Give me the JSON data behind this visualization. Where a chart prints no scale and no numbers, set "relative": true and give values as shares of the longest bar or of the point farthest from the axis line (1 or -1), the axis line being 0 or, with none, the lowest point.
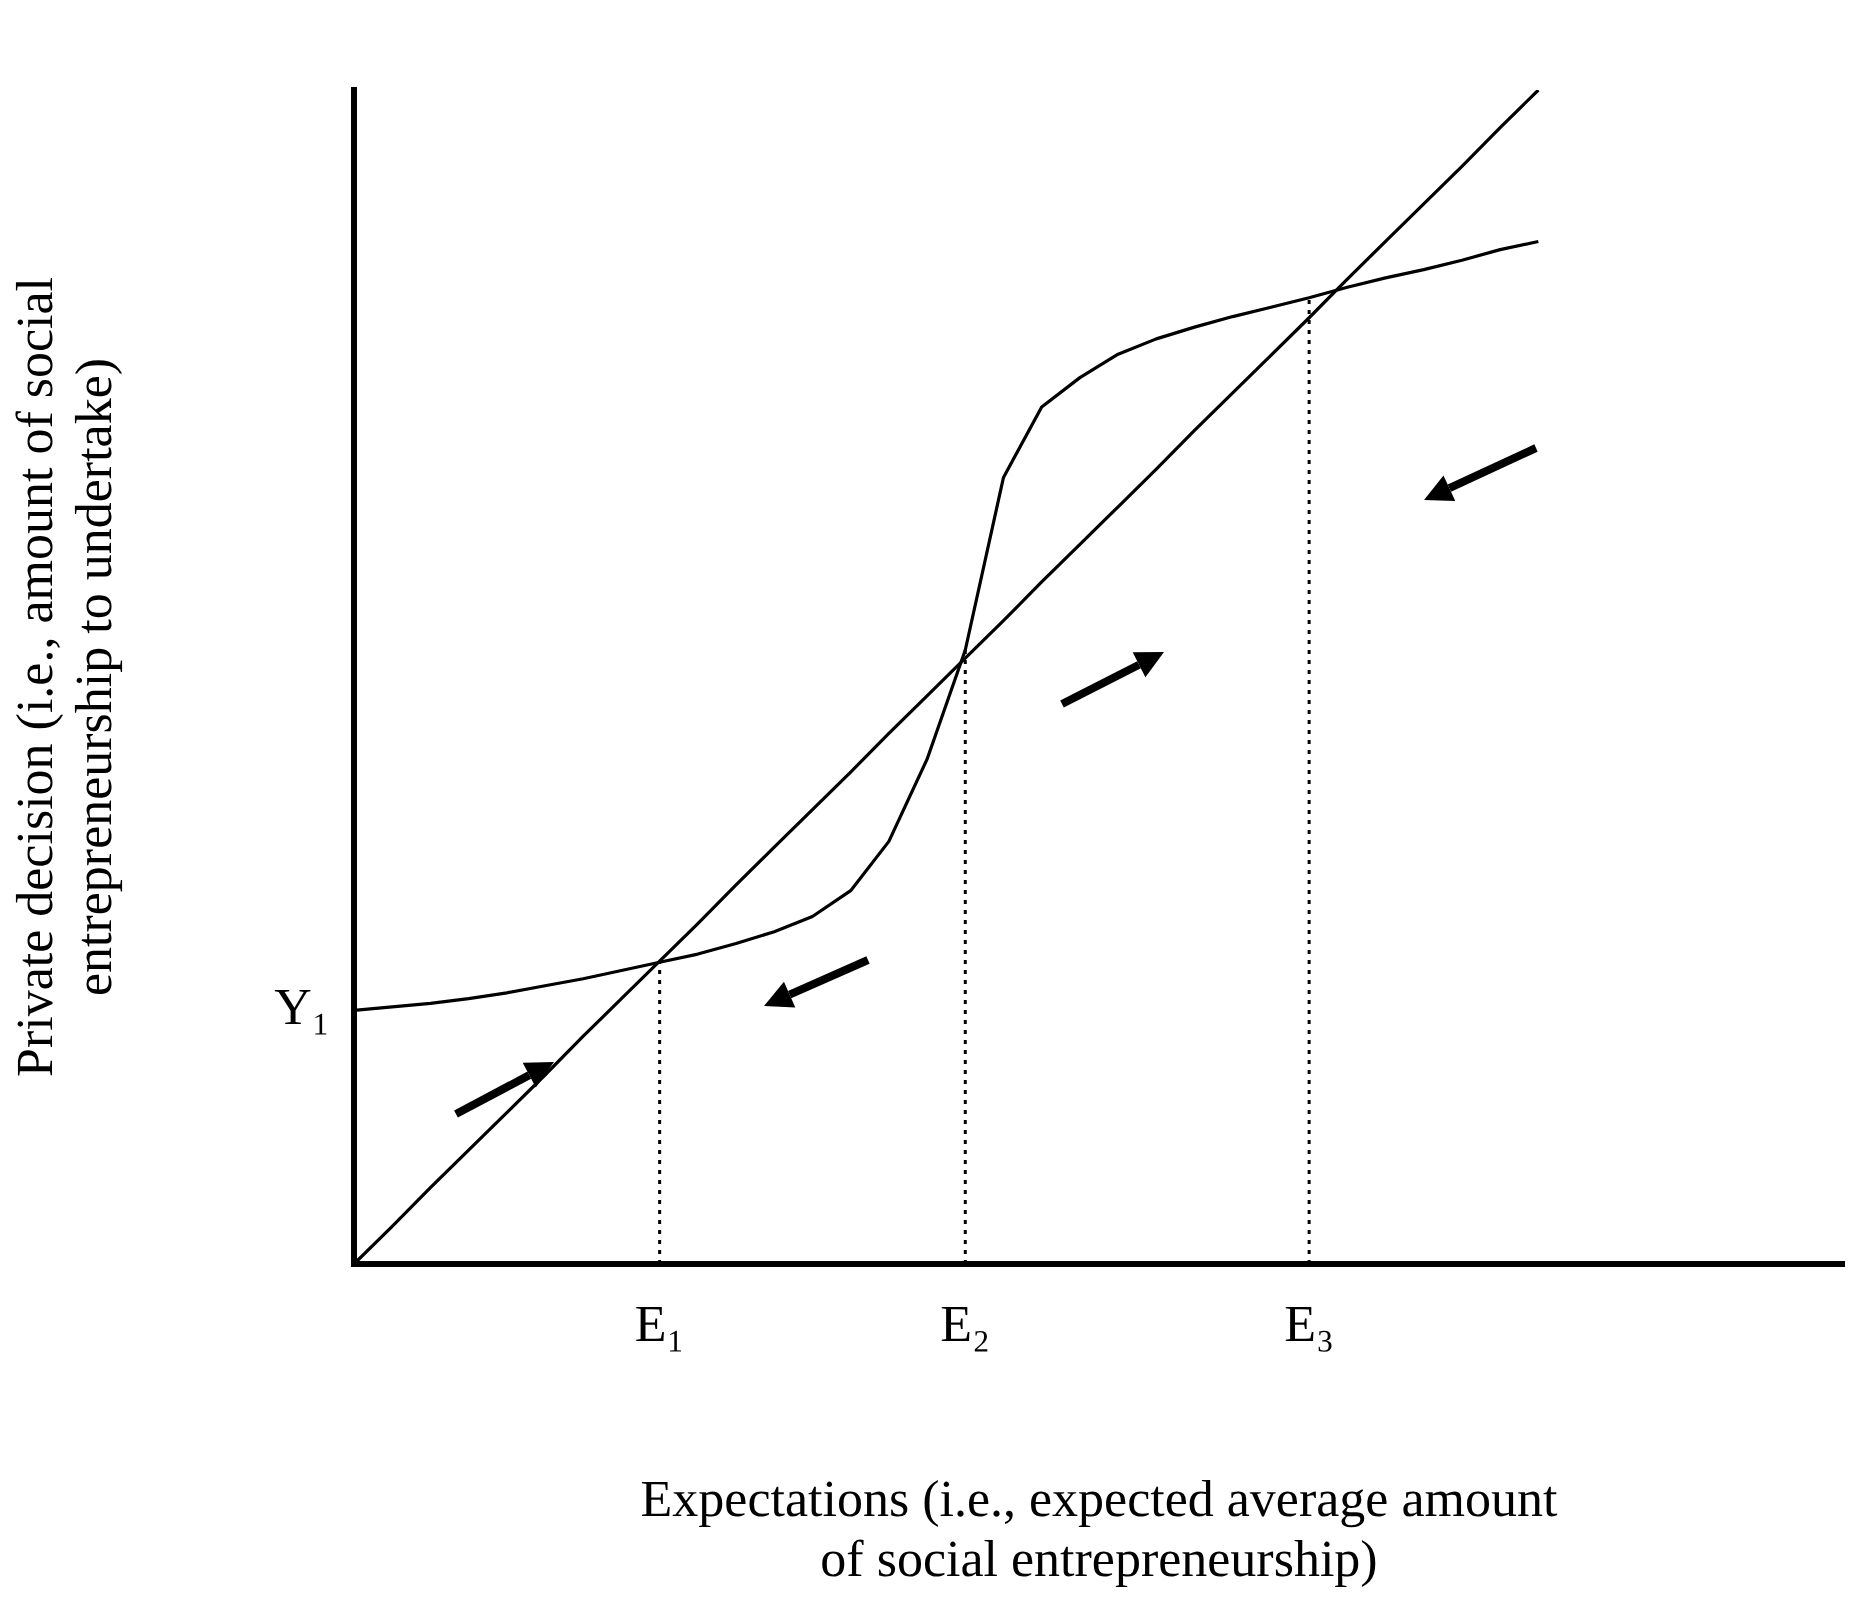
{
  "chart_data": {
    "type": "line",
    "relative": true,
    "xlabel": "Expectations (i.e., expected average amount of social entrepreneurship)",
    "ylabel": "Private decision (i.e., amount of social entrepreneurship to undertake)",
    "categories": [
      null,
      null,
      null,
      null,
      null,
      null,
      null,
      null,
      "E₁",
      null,
      null,
      null,
      null,
      null,
      null,
      null,
      "E₂",
      null,
      null,
      null,
      null,
      null,
      null,
      null,
      null,
      "E₃",
      null,
      null,
      null,
      null,
      null,
      null,
      null,
      null,
      null,
      null,
      null,
      null,
      null,
      null
    ],
    "annotations": [
      "Y₁"
    ],
    "grid": false,
    "legend": false,
    "marker": "none",
    "ref_lines": [
      {
        "axis": "x",
        "value": "E₁",
        "line_style": "dotted",
        "color": "#000000"
      },
      {
        "axis": "x",
        "value": "E₂",
        "line_style": "dotted",
        "color": "#000000"
      },
      {
        "axis": "x",
        "value": "E₃",
        "line_style": "dotted",
        "color": "#000000"
      }
    ],
    "series": [
      {
        "color": "#000000",
        "values": [
          0,
          0.032,
          0.065,
          0.097,
          0.129,
          0.161,
          0.194,
          0.226,
          0.258,
          0.29,
          0.323,
          0.355,
          0.387,
          0.419,
          0.452,
          0.484,
          0.516,
          0.548,
          0.581,
          0.613,
          0.645,
          0.677,
          0.71,
          0.742,
          0.774,
          0.806,
          0.839,
          0.871,
          0.903,
          0.935,
          0.968,
          1,
          null,
          null,
          null,
          null,
          null,
          null,
          null,
          null
        ]
      },
      {
        "color": "#000000",
        "values": [
          0.216,
          0.219,
          0.222,
          0.226,
          0.231,
          0.237,
          0.243,
          0.25,
          0.257,
          0.264,
          0.273,
          0.283,
          0.296,
          0.318,
          0.36,
          0.43,
          0.523,
          0.67,
          0.73,
          0.755,
          0.775,
          0.788,
          0.798,
          0.807,
          0.815,
          0.823,
          0.832,
          0.84,
          0.847,
          0.855,
          0.864,
          0.871,
          null,
          null,
          null,
          null,
          null,
          null,
          null,
          null
        ]
      }
    ]
  }
}
